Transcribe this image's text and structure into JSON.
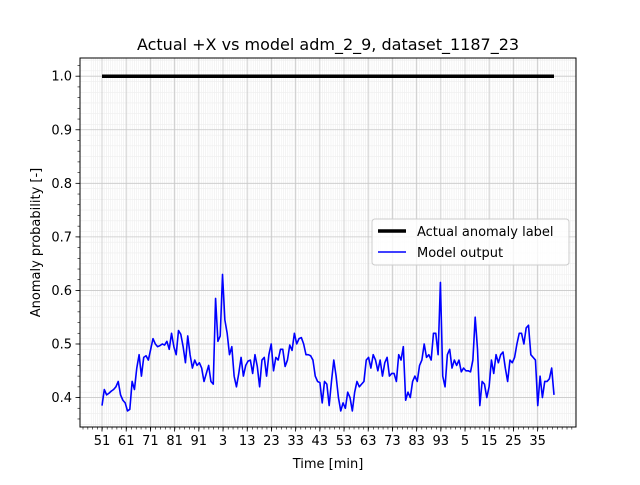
{
  "chart_data": {
    "type": "line",
    "title": "Actual +X vs model adm_2_9, dataset_1187_23",
    "xlabel": "Time [min]",
    "ylabel": "Anomaly probability [-]",
    "x_tick_labels": [
      "51",
      "61",
      "71",
      "81",
      "91",
      "3",
      "13",
      "23",
      "33",
      "43",
      "53",
      "63",
      "73",
      "83",
      "93",
      "5",
      "15",
      "25",
      "35"
    ],
    "y_ticks": [
      0.4,
      0.5,
      0.6,
      0.7,
      0.8,
      0.9,
      1.0
    ],
    "y_tick_labels": [
      "0.4",
      "0.5",
      "0.6",
      "0.7",
      "0.8",
      "0.9",
      "1.0"
    ],
    "ylim": [
      0.345,
      1.034
    ],
    "x_index_range": [
      0,
      187
    ],
    "grid": true,
    "minor_grid": true,
    "legend_position": "center-right",
    "series": [
      {
        "name": "Actual anomaly label",
        "color": "#000000",
        "linewidth": "thick",
        "values": [
          1.0,
          1.0
        ]
      },
      {
        "name": "Model output",
        "color": "#0000ff",
        "linewidth": "thin",
        "values": [
          0.385,
          0.415,
          0.405,
          0.408,
          0.412,
          0.415,
          0.42,
          0.43,
          0.405,
          0.395,
          0.39,
          0.375,
          0.378,
          0.43,
          0.415,
          0.455,
          0.48,
          0.44,
          0.475,
          0.478,
          0.47,
          0.49,
          0.51,
          0.5,
          0.495,
          0.497,
          0.5,
          0.498,
          0.505,
          0.49,
          0.52,
          0.495,
          0.48,
          0.525,
          0.518,
          0.495,
          0.465,
          0.515,
          0.48,
          0.455,
          0.47,
          0.46,
          0.465,
          0.455,
          0.43,
          0.445,
          0.46,
          0.43,
          0.425,
          0.585,
          0.505,
          0.515,
          0.63,
          0.545,
          0.52,
          0.48,
          0.495,
          0.44,
          0.42,
          0.445,
          0.475,
          0.44,
          0.46,
          0.468,
          0.47,
          0.445,
          0.48,
          0.458,
          0.42,
          0.47,
          0.475,
          0.44,
          0.48,
          0.5,
          0.45,
          0.475,
          0.47,
          0.49,
          0.49,
          0.458,
          0.47,
          0.498,
          0.488,
          0.52,
          0.5,
          0.51,
          0.512,
          0.5,
          0.48,
          0.48,
          0.478,
          0.47,
          0.44,
          0.43,
          0.428,
          0.39,
          0.43,
          0.425,
          0.385,
          0.43,
          0.47,
          0.44,
          0.4,
          0.375,
          0.39,
          0.38,
          0.41,
          0.4,
          0.375,
          0.41,
          0.43,
          0.42,
          0.425,
          0.43,
          0.47,
          0.475,
          0.455,
          0.48,
          0.47,
          0.45,
          0.47,
          0.44,
          0.465,
          0.475,
          0.44,
          0.445,
          0.445,
          0.43,
          0.48,
          0.47,
          0.495,
          0.395,
          0.41,
          0.4,
          0.43,
          0.44,
          0.43,
          0.46,
          0.47,
          0.5,
          0.475,
          0.48,
          0.47,
          0.52,
          0.52,
          0.48,
          0.615,
          0.44,
          0.42,
          0.48,
          0.49,
          0.455,
          0.47,
          0.46,
          0.47,
          0.448,
          0.455,
          0.45,
          0.45,
          0.448,
          0.47,
          0.55,
          0.49,
          0.385,
          0.43,
          0.425,
          0.4,
          0.42,
          0.47,
          0.445,
          0.48,
          0.465,
          0.48,
          0.485,
          0.455,
          0.43,
          0.47,
          0.465,
          0.475,
          0.5,
          0.52,
          0.52,
          0.5,
          0.53,
          0.535,
          0.48,
          0.475,
          0.47,
          0.385,
          0.44,
          0.4,
          0.43,
          0.43,
          0.435,
          0.455,
          0.405
        ]
      }
    ]
  }
}
